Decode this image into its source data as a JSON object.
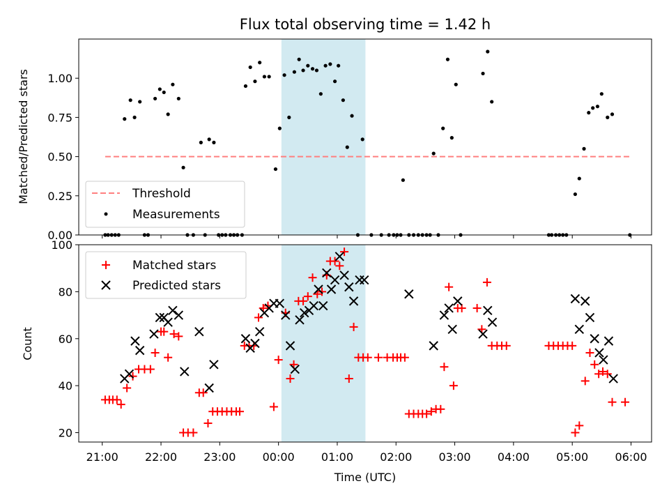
{
  "chart_data": [
    {
      "type": "scatter",
      "title": "Flux total observing time = 1.42 h",
      "ylabel": "Matched/Predicted stars",
      "xlabel": "",
      "ylim": [
        0,
        1.25
      ],
      "x_unit": "hours since 21:00 UTC",
      "yticks": [
        0.0,
        0.25,
        0.5,
        0.75,
        1.0
      ],
      "ytick_labels": [
        "0.00",
        "0.25",
        "0.50",
        "0.75",
        "1.00"
      ],
      "grid": false,
      "legend_position": "lower-left",
      "threshold": {
        "name": "Threshold",
        "value": 0.5,
        "x_range": [
          0.05,
          9.0
        ],
        "color": "#ff7f7f",
        "style": "dashed"
      },
      "shaded_region": {
        "x_range": [
          3.05,
          4.48
        ],
        "color": "#add8e6"
      },
      "series": [
        {
          "name": "Measurements",
          "color": "#000000",
          "marker": "dot",
          "points": [
            [
              0.05,
              0
            ],
            [
              0.1,
              0
            ],
            [
              0.16,
              0
            ],
            [
              0.22,
              0
            ],
            [
              0.28,
              0
            ],
            [
              0.38,
              0.74
            ],
            [
              0.48,
              0.86
            ],
            [
              0.55,
              0.75
            ],
            [
              0.64,
              0.85
            ],
            [
              0.72,
              0
            ],
            [
              0.78,
              0
            ],
            [
              0.9,
              0.87
            ],
            [
              0.98,
              0.93
            ],
            [
              1.05,
              0.91
            ],
            [
              1.12,
              0.77
            ],
            [
              1.2,
              0.96
            ],
            [
              1.3,
              0.87
            ],
            [
              1.38,
              0.43
            ],
            [
              1.45,
              0
            ],
            [
              1.55,
              0
            ],
            [
              1.68,
              0.59
            ],
            [
              1.75,
              0
            ],
            [
              1.82,
              0.61
            ],
            [
              1.9,
              0.59
            ],
            [
              1.98,
              0
            ],
            [
              2.04,
              0
            ],
            [
              2.1,
              0
            ],
            [
              2.18,
              0
            ],
            [
              2.24,
              0
            ],
            [
              2.3,
              0
            ],
            [
              2.38,
              0
            ],
            [
              2.44,
              0.95
            ],
            [
              2.52,
              1.07
            ],
            [
              2.6,
              0.98
            ],
            [
              2.68,
              1.1
            ],
            [
              2.76,
              1.01
            ],
            [
              2.84,
              1.01
            ],
            [
              2.95,
              0.42
            ],
            [
              3.02,
              0.68
            ],
            [
              3.1,
              1.02
            ],
            [
              3.18,
              0.75
            ],
            [
              3.27,
              1.04
            ],
            [
              3.35,
              1.12
            ],
            [
              3.42,
              1.05
            ],
            [
              3.5,
              1.08
            ],
            [
              3.58,
              1.06
            ],
            [
              3.65,
              1.05
            ],
            [
              3.72,
              0.9
            ],
            [
              3.8,
              1.08
            ],
            [
              3.88,
              1.09
            ],
            [
              3.96,
              0.98
            ],
            [
              4.02,
              1.08
            ],
            [
              4.1,
              0.86
            ],
            [
              4.17,
              0.56
            ],
            [
              4.25,
              0.76
            ],
            [
              4.35,
              0
            ],
            [
              4.43,
              0.61
            ],
            [
              4.58,
              0
            ],
            [
              4.75,
              0
            ],
            [
              4.88,
              0
            ],
            [
              4.96,
              0
            ],
            [
              5.02,
              0
            ],
            [
              5.08,
              0
            ],
            [
              5.12,
              0.35
            ],
            [
              5.22,
              0
            ],
            [
              5.3,
              0
            ],
            [
              5.38,
              0
            ],
            [
              5.45,
              0
            ],
            [
              5.52,
              0
            ],
            [
              5.58,
              0
            ],
            [
              5.64,
              0.52
            ],
            [
              5.72,
              0
            ],
            [
              5.8,
              0.68
            ],
            [
              5.88,
              1.12
            ],
            [
              5.95,
              0.62
            ],
            [
              6.02,
              0.96
            ],
            [
              6.1,
              0
            ],
            [
              6.48,
              1.03
            ],
            [
              6.56,
              1.17
            ],
            [
              6.63,
              0.85
            ],
            [
              7.6,
              0
            ],
            [
              7.65,
              0
            ],
            [
              7.72,
              0
            ],
            [
              7.78,
              0
            ],
            [
              7.84,
              0
            ],
            [
              7.9,
              0
            ],
            [
              8.05,
              0.26
            ],
            [
              8.12,
              0.36
            ],
            [
              8.2,
              0.55
            ],
            [
              8.28,
              0.78
            ],
            [
              8.35,
              0.81
            ],
            [
              8.43,
              0.82
            ],
            [
              8.5,
              0.9
            ],
            [
              8.6,
              0.75
            ],
            [
              8.68,
              0.77
            ],
            [
              8.98,
              0
            ]
          ]
        }
      ]
    },
    {
      "type": "scatter",
      "title": "",
      "ylabel": "Count",
      "xlabel": "Time (UTC)",
      "ylim": [
        16,
        100
      ],
      "xlim": [
        -0.4,
        9.35
      ],
      "x_unit": "hours since 21:00 UTC",
      "xticks": [
        0,
        1,
        2,
        3,
        4,
        5,
        6,
        7,
        8,
        9
      ],
      "xtick_labels": [
        "21:00",
        "22:00",
        "23:00",
        "00:00",
        "01:00",
        "02:00",
        "03:00",
        "04:00",
        "05:00",
        "06:00"
      ],
      "yticks": [
        20,
        40,
        60,
        80,
        100
      ],
      "ytick_labels": [
        "20",
        "40",
        "60",
        "80",
        "100"
      ],
      "grid": false,
      "legend_position": "upper-left",
      "shaded_region": {
        "x_range": [
          3.05,
          4.48
        ],
        "color": "#add8e6"
      },
      "series": [
        {
          "name": "Matched stars",
          "color": "#ff0000",
          "marker": "plus",
          "points": [
            [
              0.05,
              34
            ],
            [
              0.12,
              34
            ],
            [
              0.18,
              34
            ],
            [
              0.25,
              34
            ],
            [
              0.32,
              32
            ],
            [
              0.42,
              39
            ],
            [
              0.52,
              44
            ],
            [
              0.62,
              47
            ],
            [
              0.72,
              47
            ],
            [
              0.82,
              47
            ],
            [
              0.9,
              54
            ],
            [
              1.0,
              63
            ],
            [
              1.05,
              63
            ],
            [
              1.12,
              52
            ],
            [
              1.22,
              62
            ],
            [
              1.3,
              61
            ],
            [
              1.38,
              20
            ],
            [
              1.46,
              20
            ],
            [
              1.55,
              20
            ],
            [
              1.65,
              37
            ],
            [
              1.72,
              37
            ],
            [
              1.8,
              24
            ],
            [
              1.88,
              29
            ],
            [
              1.96,
              29
            ],
            [
              2.04,
              29
            ],
            [
              2.12,
              29
            ],
            [
              2.2,
              29
            ],
            [
              2.28,
              29
            ],
            [
              2.34,
              29
            ],
            [
              2.42,
              57
            ],
            [
              2.5,
              57
            ],
            [
              2.58,
              57
            ],
            [
              2.66,
              69
            ],
            [
              2.74,
              73
            ],
            [
              2.82,
              74
            ],
            [
              2.92,
              31
            ],
            [
              3.0,
              51
            ],
            [
              3.12,
              71
            ],
            [
              3.2,
              43
            ],
            [
              3.26,
              49
            ],
            [
              3.34,
              76
            ],
            [
              3.42,
              76
            ],
            [
              3.5,
              78
            ],
            [
              3.58,
              86
            ],
            [
              3.66,
              79
            ],
            [
              3.74,
              80
            ],
            [
              3.82,
              87
            ],
            [
              3.88,
              93
            ],
            [
              3.96,
              93
            ],
            [
              4.04,
              91
            ],
            [
              4.12,
              97
            ],
            [
              4.2,
              43
            ],
            [
              4.28,
              65
            ],
            [
              4.36,
              52
            ],
            [
              4.44,
              52
            ],
            [
              4.52,
              52
            ],
            [
              4.7,
              52
            ],
            [
              4.85,
              52
            ],
            [
              4.95,
              52
            ],
            [
              5.02,
              52
            ],
            [
              5.08,
              52
            ],
            [
              5.15,
              52
            ],
            [
              5.22,
              28
            ],
            [
              5.3,
              28
            ],
            [
              5.38,
              28
            ],
            [
              5.45,
              28
            ],
            [
              5.52,
              28
            ],
            [
              5.6,
              29
            ],
            [
              5.68,
              30
            ],
            [
              5.76,
              30
            ],
            [
              5.82,
              48
            ],
            [
              5.9,
              82
            ],
            [
              5.98,
              40
            ],
            [
              6.05,
              73
            ],
            [
              6.12,
              73
            ],
            [
              6.38,
              73
            ],
            [
              6.46,
              64
            ],
            [
              6.55,
              84
            ],
            [
              6.63,
              57
            ],
            [
              6.72,
              57
            ],
            [
              6.8,
              57
            ],
            [
              6.88,
              57
            ],
            [
              7.6,
              57
            ],
            [
              7.68,
              57
            ],
            [
              7.76,
              57
            ],
            [
              7.84,
              57
            ],
            [
              7.92,
              57
            ],
            [
              8.0,
              57
            ],
            [
              8.05,
              20
            ],
            [
              8.12,
              23
            ],
            [
              8.22,
              42
            ],
            [
              8.3,
              54
            ],
            [
              8.38,
              49
            ],
            [
              8.45,
              45
            ],
            [
              8.52,
              46
            ],
            [
              8.6,
              45
            ],
            [
              8.68,
              33
            ],
            [
              8.9,
              33
            ]
          ]
        },
        {
          "name": "Predicted stars",
          "color": "#000000",
          "marker": "x",
          "points": [
            [
              0.38,
              43
            ],
            [
              0.46,
              45
            ],
            [
              0.56,
              59
            ],
            [
              0.64,
              55
            ],
            [
              0.88,
              62
            ],
            [
              0.98,
              69
            ],
            [
              1.05,
              69
            ],
            [
              1.12,
              67
            ],
            [
              1.2,
              72
            ],
            [
              1.3,
              70
            ],
            [
              1.4,
              46
            ],
            [
              1.65,
              63
            ],
            [
              1.82,
              39
            ],
            [
              1.9,
              49
            ],
            [
              2.44,
              60
            ],
            [
              2.52,
              56
            ],
            [
              2.6,
              58
            ],
            [
              2.68,
              63
            ],
            [
              2.76,
              71
            ],
            [
              2.84,
              73
            ],
            [
              2.92,
              75
            ],
            [
              3.02,
              75
            ],
            [
              3.12,
              70
            ],
            [
              3.2,
              57
            ],
            [
              3.28,
              47
            ],
            [
              3.36,
              68
            ],
            [
              3.44,
              71
            ],
            [
              3.52,
              72
            ],
            [
              3.6,
              74
            ],
            [
              3.68,
              81
            ],
            [
              3.76,
              74
            ],
            [
              3.82,
              88
            ],
            [
              3.9,
              81
            ],
            [
              3.96,
              85
            ],
            [
              4.04,
              95
            ],
            [
              4.12,
              87
            ],
            [
              4.2,
              82
            ],
            [
              4.28,
              76
            ],
            [
              4.38,
              85
            ],
            [
              4.46,
              85
            ],
            [
              5.22,
              79
            ],
            [
              5.64,
              57
            ],
            [
              5.82,
              70
            ],
            [
              5.9,
              73
            ],
            [
              5.96,
              64
            ],
            [
              6.05,
              76
            ],
            [
              6.48,
              62
            ],
            [
              6.56,
              72
            ],
            [
              6.64,
              67
            ],
            [
              8.05,
              77
            ],
            [
              8.12,
              64
            ],
            [
              8.22,
              76
            ],
            [
              8.3,
              69
            ],
            [
              8.38,
              60
            ],
            [
              8.46,
              54
            ],
            [
              8.53,
              51
            ],
            [
              8.62,
              59
            ],
            [
              8.7,
              43
            ]
          ]
        }
      ]
    }
  ]
}
